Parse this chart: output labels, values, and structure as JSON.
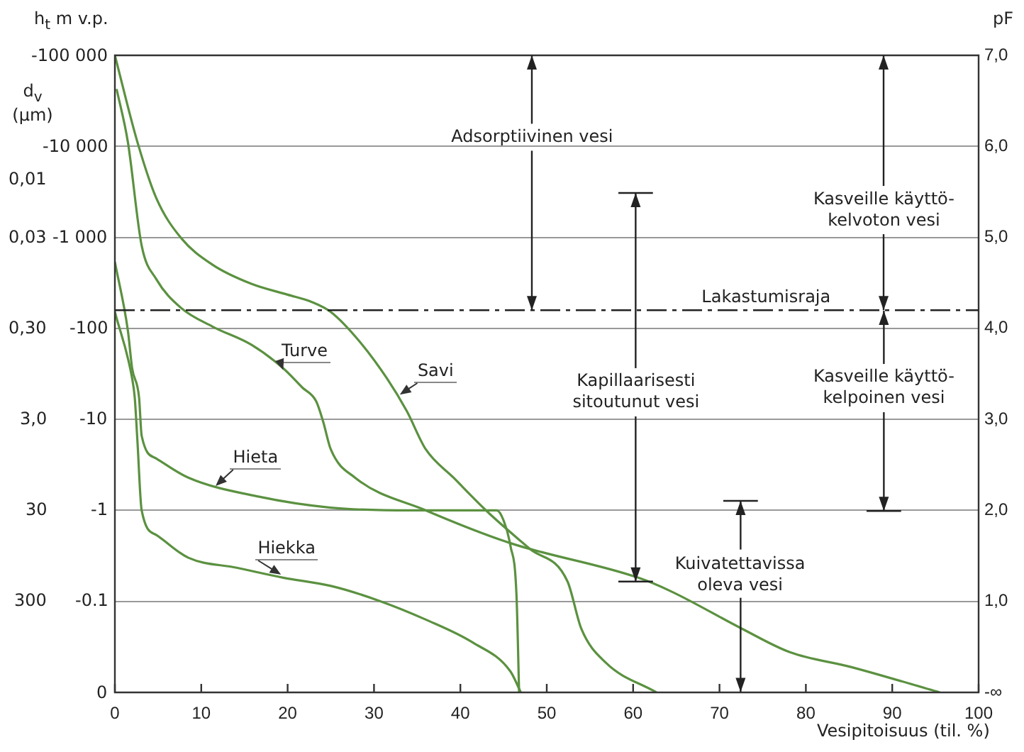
{
  "chart_data": {
    "type": "line",
    "xlabel": "Vesipitoisuus (til. %)",
    "ylabel": "pF",
    "xlim": [
      0,
      100
    ],
    "xticks": [
      0,
      10,
      20,
      30,
      40,
      50,
      60,
      70,
      80,
      90,
      100
    ],
    "ylim": [
      0,
      7
    ],
    "yticks": [
      {
        "value": 0,
        "label": "-∞"
      },
      {
        "value": 1,
        "label": "1,0"
      },
      {
        "value": 2,
        "label": "2,0"
      },
      {
        "value": 3,
        "label": "3,0"
      },
      {
        "value": 4,
        "label": "4,0"
      },
      {
        "value": 5,
        "label": "5,0"
      },
      {
        "value": 6,
        "label": "6,0"
      },
      {
        "value": 7,
        "label": "7,0"
      }
    ],
    "grid": "y",
    "legend": false,
    "marker": "none",
    "line_style": "solid",
    "series": [
      {
        "name": "Turve",
        "color": "#5b9140",
        "x": [
          0.2,
          1.5,
          3.1,
          4.8,
          7.6,
          11.3,
          15.8,
          19.5,
          21.7,
          23.3,
          24.1,
          25,
          27.8,
          36,
          45.8,
          60.6,
          64.4,
          72.6,
          78.2,
          85.2,
          95.5
        ],
        "values": [
          6.63,
          6.05,
          4.91,
          4.54,
          4.23,
          4.02,
          3.82,
          3.56,
          3.35,
          3.2,
          2.98,
          2.67,
          2.36,
          2.0,
          1.64,
          1.26,
          1.11,
          0.7,
          0.44,
          0.28,
          0
        ]
      },
      {
        "name": "Savi",
        "color": "#5b9140",
        "x": [
          0,
          2.6,
          4.8,
          7.6,
          11.3,
          15.8,
          20,
          22.8,
          25,
          28.2,
          31.5,
          33.8,
          36,
          39.2,
          43.3,
          48,
          52.4,
          54,
          56.8,
          62.7
        ],
        "values": [
          7,
          6.05,
          5.43,
          5.0,
          4.7,
          4.49,
          4.37,
          4.29,
          4.18,
          3.87,
          3.45,
          3.09,
          2.67,
          2.36,
          1.97,
          1.58,
          1.22,
          0.7,
          0.33,
          0
        ]
      },
      {
        "name": "Hieta",
        "color": "#5b9140",
        "x": [
          0,
          1.5,
          2,
          2.8,
          3.1,
          4.8,
          8.5,
          16.7,
          25,
          34.3,
          44.2,
          45,
          45.8,
          46.5,
          46.8
        ],
        "values": [
          4.73,
          3.98,
          3.56,
          3.24,
          2.82,
          2.57,
          2.36,
          2.15,
          2.03,
          2.0,
          2.0,
          1.89,
          1.61,
          1.06,
          0
        ]
      },
      {
        "name": "Hiekka",
        "color": "#5b9140",
        "x": [
          0,
          2,
          2.3,
          2.6,
          3.1,
          4.8,
          8.5,
          14.1,
          19.5,
          25,
          30.5,
          36,
          41.4,
          45.8,
          47
        ],
        "values": [
          4.18,
          3.45,
          3.24,
          2.78,
          2.0,
          1.73,
          1.48,
          1.37,
          1.26,
          1.17,
          1.01,
          0.8,
          0.55,
          0.23,
          0
        ]
      }
    ],
    "ref_lines": [
      {
        "axis": "y",
        "value": 4.2,
        "label": "Lakastumisraja",
        "color": "#222222",
        "line_style": "dashdot"
      }
    ],
    "annotations": [
      {
        "text": "Adsorptiivinen vesi",
        "x": 48.3,
        "y": 4.2
      },
      {
        "text": "Kapillaarisesti\nsitoutunut vesi",
        "x": 60.3,
        "y": 1.27
      },
      {
        "text": "Kasveille käyttö-\nkelvoton vesi",
        "x": 89,
        "y": 4.2
      },
      {
        "text": "Kasveille käyttö-\nkelpoinen vesi",
        "x": 89,
        "y": 4.2
      },
      "Kuivatettavissa\noleva vesi",
      "h$_{t}$ m v.p.",
      "-100 000",
      "-10 000",
      "-1 000",
      "-100",
      "-10",
      "-1",
      "-0.1",
      "0",
      "d$_{v}$ (µm)",
      "0,01",
      "0,03",
      "0,30",
      "3,0",
      "30",
      "300"
    ]
  }
}
